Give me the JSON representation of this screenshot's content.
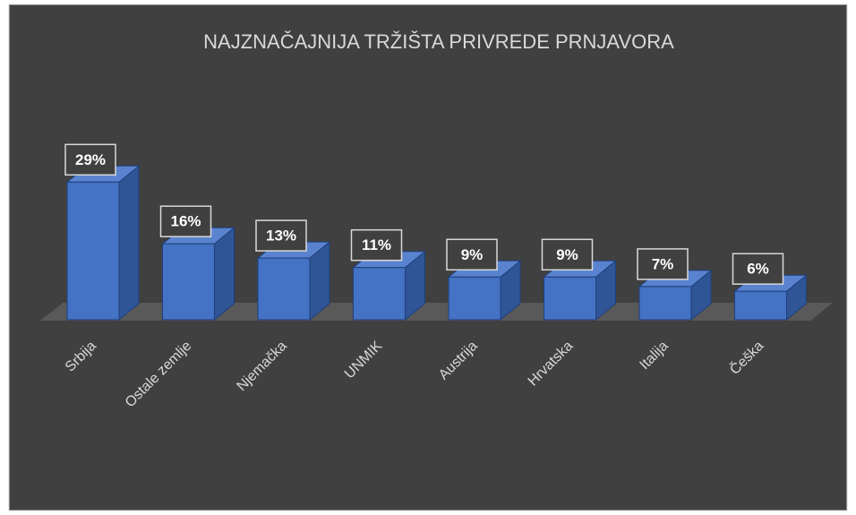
{
  "chart_data": {
    "type": "bar3d",
    "title": "NAJZNAČAJNIJA TRŽIŠTA PRIVREDE PRNJAVORA",
    "categories": [
      "Srbija",
      "Ostale zemlje",
      "Njemačka",
      "UNMIK",
      "Austrija",
      "Hrvatska",
      "Italija",
      "Češka"
    ],
    "values": [
      29,
      16,
      13,
      11,
      9,
      9,
      7,
      6
    ],
    "value_labels": [
      "29%",
      "16%",
      "13%",
      "11%",
      "9%",
      "9%",
      "7%",
      "6%"
    ],
    "color": "#4472c4"
  }
}
